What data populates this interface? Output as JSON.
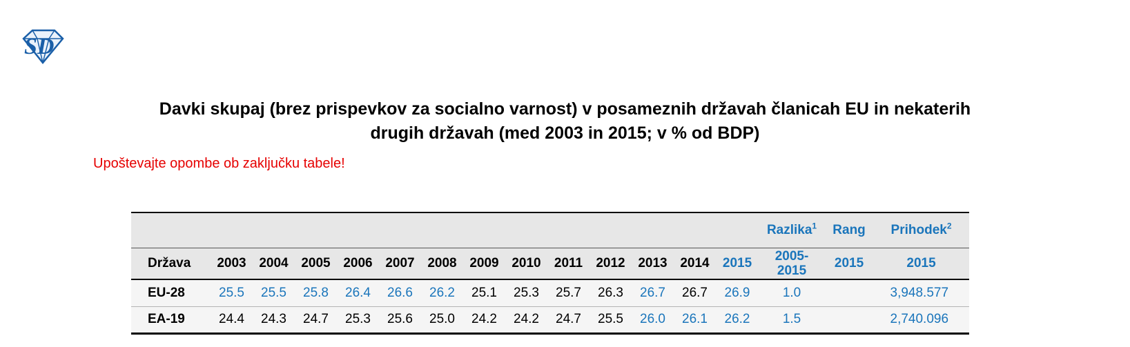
{
  "colors": {
    "accent": "#1a75bb",
    "note": "#e60000",
    "header_bg": "#e7e7e7",
    "row_bg": "#f5f5f5"
  },
  "logo": {
    "name": "sd-diamond-logo"
  },
  "title": {
    "line1": "Davki skupaj (brez prispevkov za socialno varnost) v posameznih državah članicah EU in nekaterih",
    "line2": "drugih državah (med 2003 in 2015; v % od BDP)"
  },
  "note": {
    "text": "Upoštevajte opombe ob zaključku tabele!"
  },
  "table": {
    "group_row": {
      "empty_span": 14,
      "cells": [
        {
          "t": "Razlika",
          "sup": "1"
        },
        {
          "t": "Rang",
          "sup": ""
        },
        {
          "t": "Prihodek",
          "sup": "2"
        }
      ]
    },
    "header_row": [
      {
        "t": "Država",
        "blue": false
      },
      {
        "t": "2003",
        "blue": false
      },
      {
        "t": "2004",
        "blue": false
      },
      {
        "t": "2005",
        "blue": false
      },
      {
        "t": "2006",
        "blue": false
      },
      {
        "t": "2007",
        "blue": false
      },
      {
        "t": "2008",
        "blue": false
      },
      {
        "t": "2009",
        "blue": false
      },
      {
        "t": "2010",
        "blue": false
      },
      {
        "t": "2011",
        "blue": false
      },
      {
        "t": "2012",
        "blue": false
      },
      {
        "t": "2013",
        "blue": false
      },
      {
        "t": "2014",
        "blue": false
      },
      {
        "t": "2015",
        "blue": true
      },
      {
        "t": "2005-\n2015",
        "blue": true
      },
      {
        "t": "2015",
        "blue": true
      },
      {
        "t": "2015",
        "blue": true
      }
    ],
    "rows": [
      {
        "country": "EU-28",
        "cells": [
          {
            "t": "25.5",
            "blue": true
          },
          {
            "t": "25.5",
            "blue": true
          },
          {
            "t": "25.8",
            "blue": true
          },
          {
            "t": "26.4",
            "blue": true
          },
          {
            "t": "26.6",
            "blue": true
          },
          {
            "t": "26.2",
            "blue": true
          },
          {
            "t": "25.1",
            "blue": false
          },
          {
            "t": "25.3",
            "blue": false
          },
          {
            "t": "25.7",
            "blue": false
          },
          {
            "t": "26.3",
            "blue": false
          },
          {
            "t": "26.7",
            "blue": true
          },
          {
            "t": "26.7",
            "blue": false
          },
          {
            "t": "26.9",
            "blue": true
          },
          {
            "t": "1.0",
            "blue": true
          },
          {
            "t": "",
            "blue": false
          },
          {
            "t": "3,948.577",
            "blue": true
          }
        ]
      },
      {
        "country": "EA-19",
        "cells": [
          {
            "t": "24.4",
            "blue": false
          },
          {
            "t": "24.3",
            "blue": false
          },
          {
            "t": "24.7",
            "blue": false
          },
          {
            "t": "25.3",
            "blue": false
          },
          {
            "t": "25.6",
            "blue": false
          },
          {
            "t": "25.0",
            "blue": false
          },
          {
            "t": "24.2",
            "blue": false
          },
          {
            "t": "24.2",
            "blue": false
          },
          {
            "t": "24.7",
            "blue": false
          },
          {
            "t": "25.5",
            "blue": false
          },
          {
            "t": "26.0",
            "blue": true
          },
          {
            "t": "26.1",
            "blue": true
          },
          {
            "t": "26.2",
            "blue": true
          },
          {
            "t": "1.5",
            "blue": true
          },
          {
            "t": "",
            "blue": false
          },
          {
            "t": "2,740.096",
            "blue": true
          }
        ]
      }
    ]
  }
}
